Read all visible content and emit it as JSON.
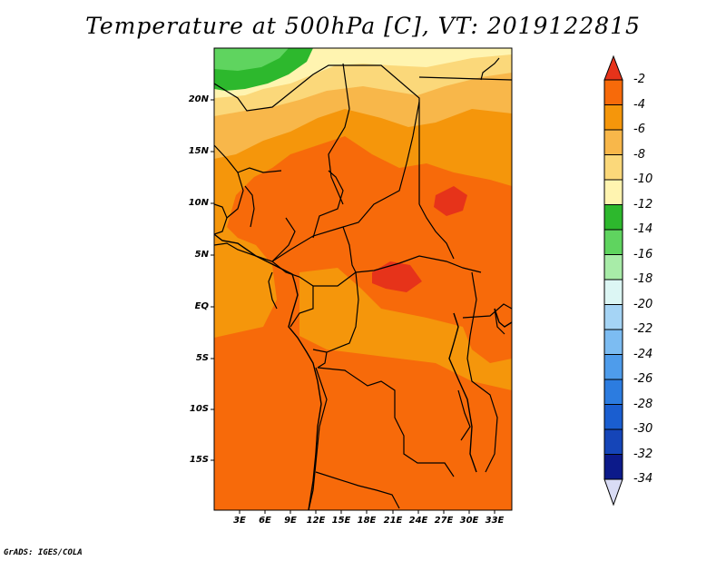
{
  "title": "Temperature at 500hPa [C], VT: 2019122815",
  "credit": "GrADS: IGES/COLA",
  "map": {
    "region": "Central Africa",
    "variable": "Temperature at 500hPa",
    "units": "C",
    "valid_time": "2019122815",
    "lat_labels": [
      "20N",
      "15N",
      "10N",
      "5N",
      "EQ",
      "5S",
      "10S",
      "15S"
    ],
    "lon_labels": [
      "3E",
      "6E",
      "9E",
      "12E",
      "15E",
      "18E",
      "21E",
      "24E",
      "27E",
      "30E",
      "33E"
    ]
  },
  "colorbar": {
    "labels": [
      "-2",
      "-4",
      "-6",
      "-8",
      "-10",
      "-12",
      "-14",
      "-16",
      "-18",
      "-20",
      "-22",
      "-24",
      "-26",
      "-28",
      "-30",
      "-32",
      "-34"
    ],
    "colors": [
      "#e6331a",
      "#f76a0a",
      "#f5960b",
      "#f8b74a",
      "#fbd87a",
      "#fff4b0",
      "#2db82d",
      "#5fd45f",
      "#a8eca8",
      "#dcf6f4",
      "#a5d4f5",
      "#7cbcf2",
      "#4e9ceb",
      "#2c7ce0",
      "#1a5ed0",
      "#1545b8",
      "#0c1a8a",
      "#d9dcf5"
    ]
  }
}
